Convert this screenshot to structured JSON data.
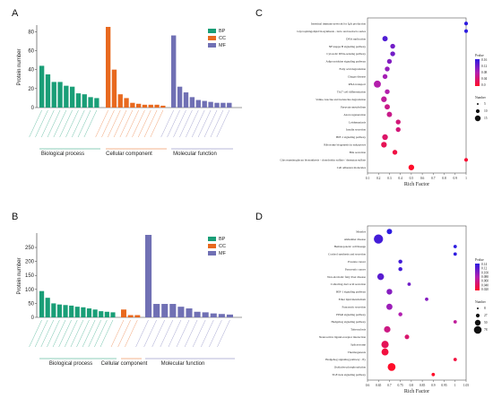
{
  "panels": {
    "a": "A",
    "b": "B",
    "c": "C",
    "d": "D"
  },
  "colors": {
    "BP": "#1a9e77",
    "CC": "#e8691f",
    "MF": "#7070b4"
  },
  "chart_data": [
    {
      "panel": "A",
      "type": "bar",
      "ylabel": "Protein number",
      "ylim": [
        0,
        85
      ],
      "yticks": [
        0,
        20,
        40,
        60,
        80
      ],
      "legend": [
        "BP",
        "CC",
        "MF"
      ],
      "series": [
        {
          "name": "BP",
          "values": [
            44,
            35,
            27,
            27,
            23,
            22,
            15,
            14,
            11,
            10
          ]
        },
        {
          "name": "CC",
          "values": [
            85,
            40,
            14,
            10,
            5,
            4,
            3,
            3,
            3,
            2
          ]
        },
        {
          "name": "MF",
          "values": [
            76,
            22,
            16,
            11,
            8,
            7,
            6,
            5,
            5,
            5
          ]
        }
      ],
      "group_labels": [
        "Biological process",
        "Cellular component",
        "Molecular function"
      ]
    },
    {
      "panel": "B",
      "type": "bar",
      "ylabel": "Protein number",
      "ylim": [
        0,
        295
      ],
      "yticks": [
        0,
        50,
        100,
        150,
        200,
        250
      ],
      "legend": [
        "BP",
        "CC",
        "MF"
      ],
      "series": [
        {
          "name": "BP",
          "values": [
            94,
            70,
            50,
            46,
            44,
            42,
            38,
            36,
            32,
            28,
            22,
            20,
            18
          ]
        },
        {
          "name": "CC",
          "values": [
            28,
            8,
            8
          ]
        },
        {
          "name": "MF",
          "values": [
            295,
            48,
            48,
            48,
            38,
            32,
            20,
            18,
            14,
            12,
            10
          ]
        }
      ],
      "group_labels": [
        "Biological process",
        "Cellular component",
        "Molecular function"
      ]
    },
    {
      "panel": "C",
      "type": "scatter",
      "xlabel": "Rich Factor",
      "xlim": [
        0.1,
        1.0
      ],
      "xticks": [
        "0.1",
        "0.2",
        "0.3",
        "0.4",
        "0.5",
        "0.6",
        "0.7",
        "0.8",
        "0.9",
        "1"
      ],
      "categories": [
        "Intestinal immune network for IgA production",
        "Glycosphingolipid biosynthesis - lacto and neolacto series",
        "DNA replication",
        "NF-kappa B signaling pathway",
        "Cytosolic DNA-sensing pathway",
        "Adipocytokine signaling pathway",
        "Fatty acid degradation",
        "Chagas disease",
        "RNA transport",
        "Th17 cell differentiation",
        "Valine, leucine and isoleucine degradation",
        "Pyruvate metabolism",
        "Axon regeneration",
        "Leishmaniasis",
        "Insulin secretion",
        "HIF-1 signaling pathway",
        "Ribosome biogenesis in eukaryotes",
        "Bile secretion",
        "Glycosaminoglycan biosynthesis - chondroitin sulfate / dermatan sulfate",
        "Cell adhesion molecules"
      ],
      "x": [
        1.0,
        1.0,
        0.26,
        0.33,
        0.33,
        0.3,
        0.28,
        0.26,
        0.19,
        0.28,
        0.25,
        0.28,
        0.3,
        0.38,
        0.38,
        0.26,
        0.25,
        0.35,
        1.0,
        0.5
      ],
      "size": [
        2,
        2,
        5,
        4,
        4,
        4,
        4,
        4,
        10,
        4,
        6,
        5,
        5,
        4,
        4,
        6,
        6,
        4,
        2,
        6
      ],
      "pvalue": [
        0.16,
        0.16,
        0.14,
        0.12,
        0.12,
        0.11,
        0.1,
        0.09,
        0.08,
        0.08,
        0.07,
        0.06,
        0.06,
        0.05,
        0.05,
        0.04,
        0.03,
        0.02,
        0.01,
        0.005
      ],
      "legend_pvalue": {
        "title": "Pvalue",
        "ticks": [
          "0.16",
          "0.12",
          "0.08",
          "0.04",
          "0.0"
        ]
      },
      "legend_number": {
        "title": "Number",
        "items": [
          "5",
          "10",
          "15"
        ]
      }
    },
    {
      "panel": "D",
      "type": "scatter",
      "xlabel": "Rich Factor",
      "xlim": [
        0.6,
        1.05
      ],
      "xticks": [
        "0.6",
        "0.65",
        "0.7",
        "0.75",
        "0.8",
        "0.85",
        "0.9",
        "0.95",
        "1",
        "1.05"
      ],
      "categories": [
        "Measles",
        "Alzheimer disease",
        "Hematopoietic cell lineage",
        "Cortisol synthesis and secretion",
        "Prostate cancer",
        "Pancreatic cancer",
        "Non-alcoholic fatty liver disease",
        "Collecting duct acid secretion",
        "HIF-1 signaling pathway",
        "Ether lipid metabolism",
        "Pancreatic secretion",
        "PPAR signaling pathway",
        "Hedgehog signaling pathway",
        "Tuberculosis",
        "Neuroactive ligand-receptor interaction",
        "Spliceosome",
        "Thermogenesis",
        "Hedgehog signaling pathway - fly",
        "Oxidative phosphorylation",
        "TGF-beta signaling pathway"
      ],
      "x": [
        0.7,
        0.65,
        1.0,
        1.0,
        0.75,
        0.75,
        0.66,
        0.79,
        0.7,
        0.87,
        0.7,
        0.75,
        1.0,
        0.69,
        0.78,
        0.68,
        0.68,
        1.0,
        0.71,
        0.9
      ],
      "size": [
        12,
        40,
        4,
        4,
        6,
        6,
        20,
        4,
        14,
        4,
        16,
        6,
        4,
        18,
        8,
        24,
        22,
        4,
        28,
        4
      ],
      "pvalue": [
        0.14,
        0.13,
        0.14,
        0.14,
        0.13,
        0.13,
        0.12,
        0.11,
        0.1,
        0.1,
        0.09,
        0.08,
        0.07,
        0.06,
        0.05,
        0.04,
        0.03,
        0.03,
        0.02,
        0.02
      ],
      "legend_pvalue": {
        "title": "Pvalue",
        "ticks": [
          "0.14",
          "0.12",
          "0.100",
          "0.080",
          "0.060",
          "0.040",
          "0.020"
        ]
      },
      "legend_number": {
        "title": "Number",
        "items": [
          "8",
          "27",
          "50",
          "78"
        ]
      }
    }
  ]
}
